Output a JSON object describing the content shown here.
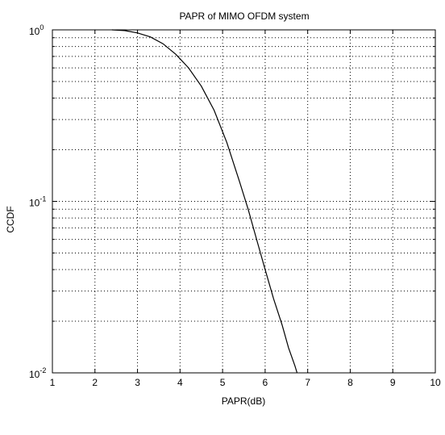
{
  "chart_data": {
    "type": "line",
    "title": "PAPR of MIMO OFDM system",
    "xlabel": "PAPR(dB)",
    "ylabel": "CCDF",
    "xlim": [
      1,
      10
    ],
    "ylim": [
      0.01,
      1
    ],
    "yscale": "log",
    "grid": true,
    "x_ticks": [
      "1",
      "2",
      "3",
      "4",
      "5",
      "6",
      "7",
      "8",
      "9",
      "10"
    ],
    "y_ticks": [
      {
        "value": 1,
        "base": "10",
        "exp": "0"
      },
      {
        "value": 0.1,
        "base": "10",
        "exp": "-1"
      },
      {
        "value": 0.01,
        "base": "10",
        "exp": "-2"
      }
    ],
    "series": [
      {
        "color": "#000000",
        "x": [
          2.4,
          2.7,
          3.0,
          3.3,
          3.6,
          3.9,
          4.2,
          4.5,
          4.8,
          5.1,
          5.4,
          5.6,
          5.8,
          6.0,
          6.2,
          6.4,
          6.55,
          6.7,
          6.75
        ],
        "y": [
          1.0,
          0.99,
          0.96,
          0.91,
          0.83,
          0.72,
          0.6,
          0.47,
          0.34,
          0.22,
          0.13,
          0.09,
          0.06,
          0.04,
          0.027,
          0.019,
          0.014,
          0.011,
          0.01
        ]
      }
    ]
  }
}
